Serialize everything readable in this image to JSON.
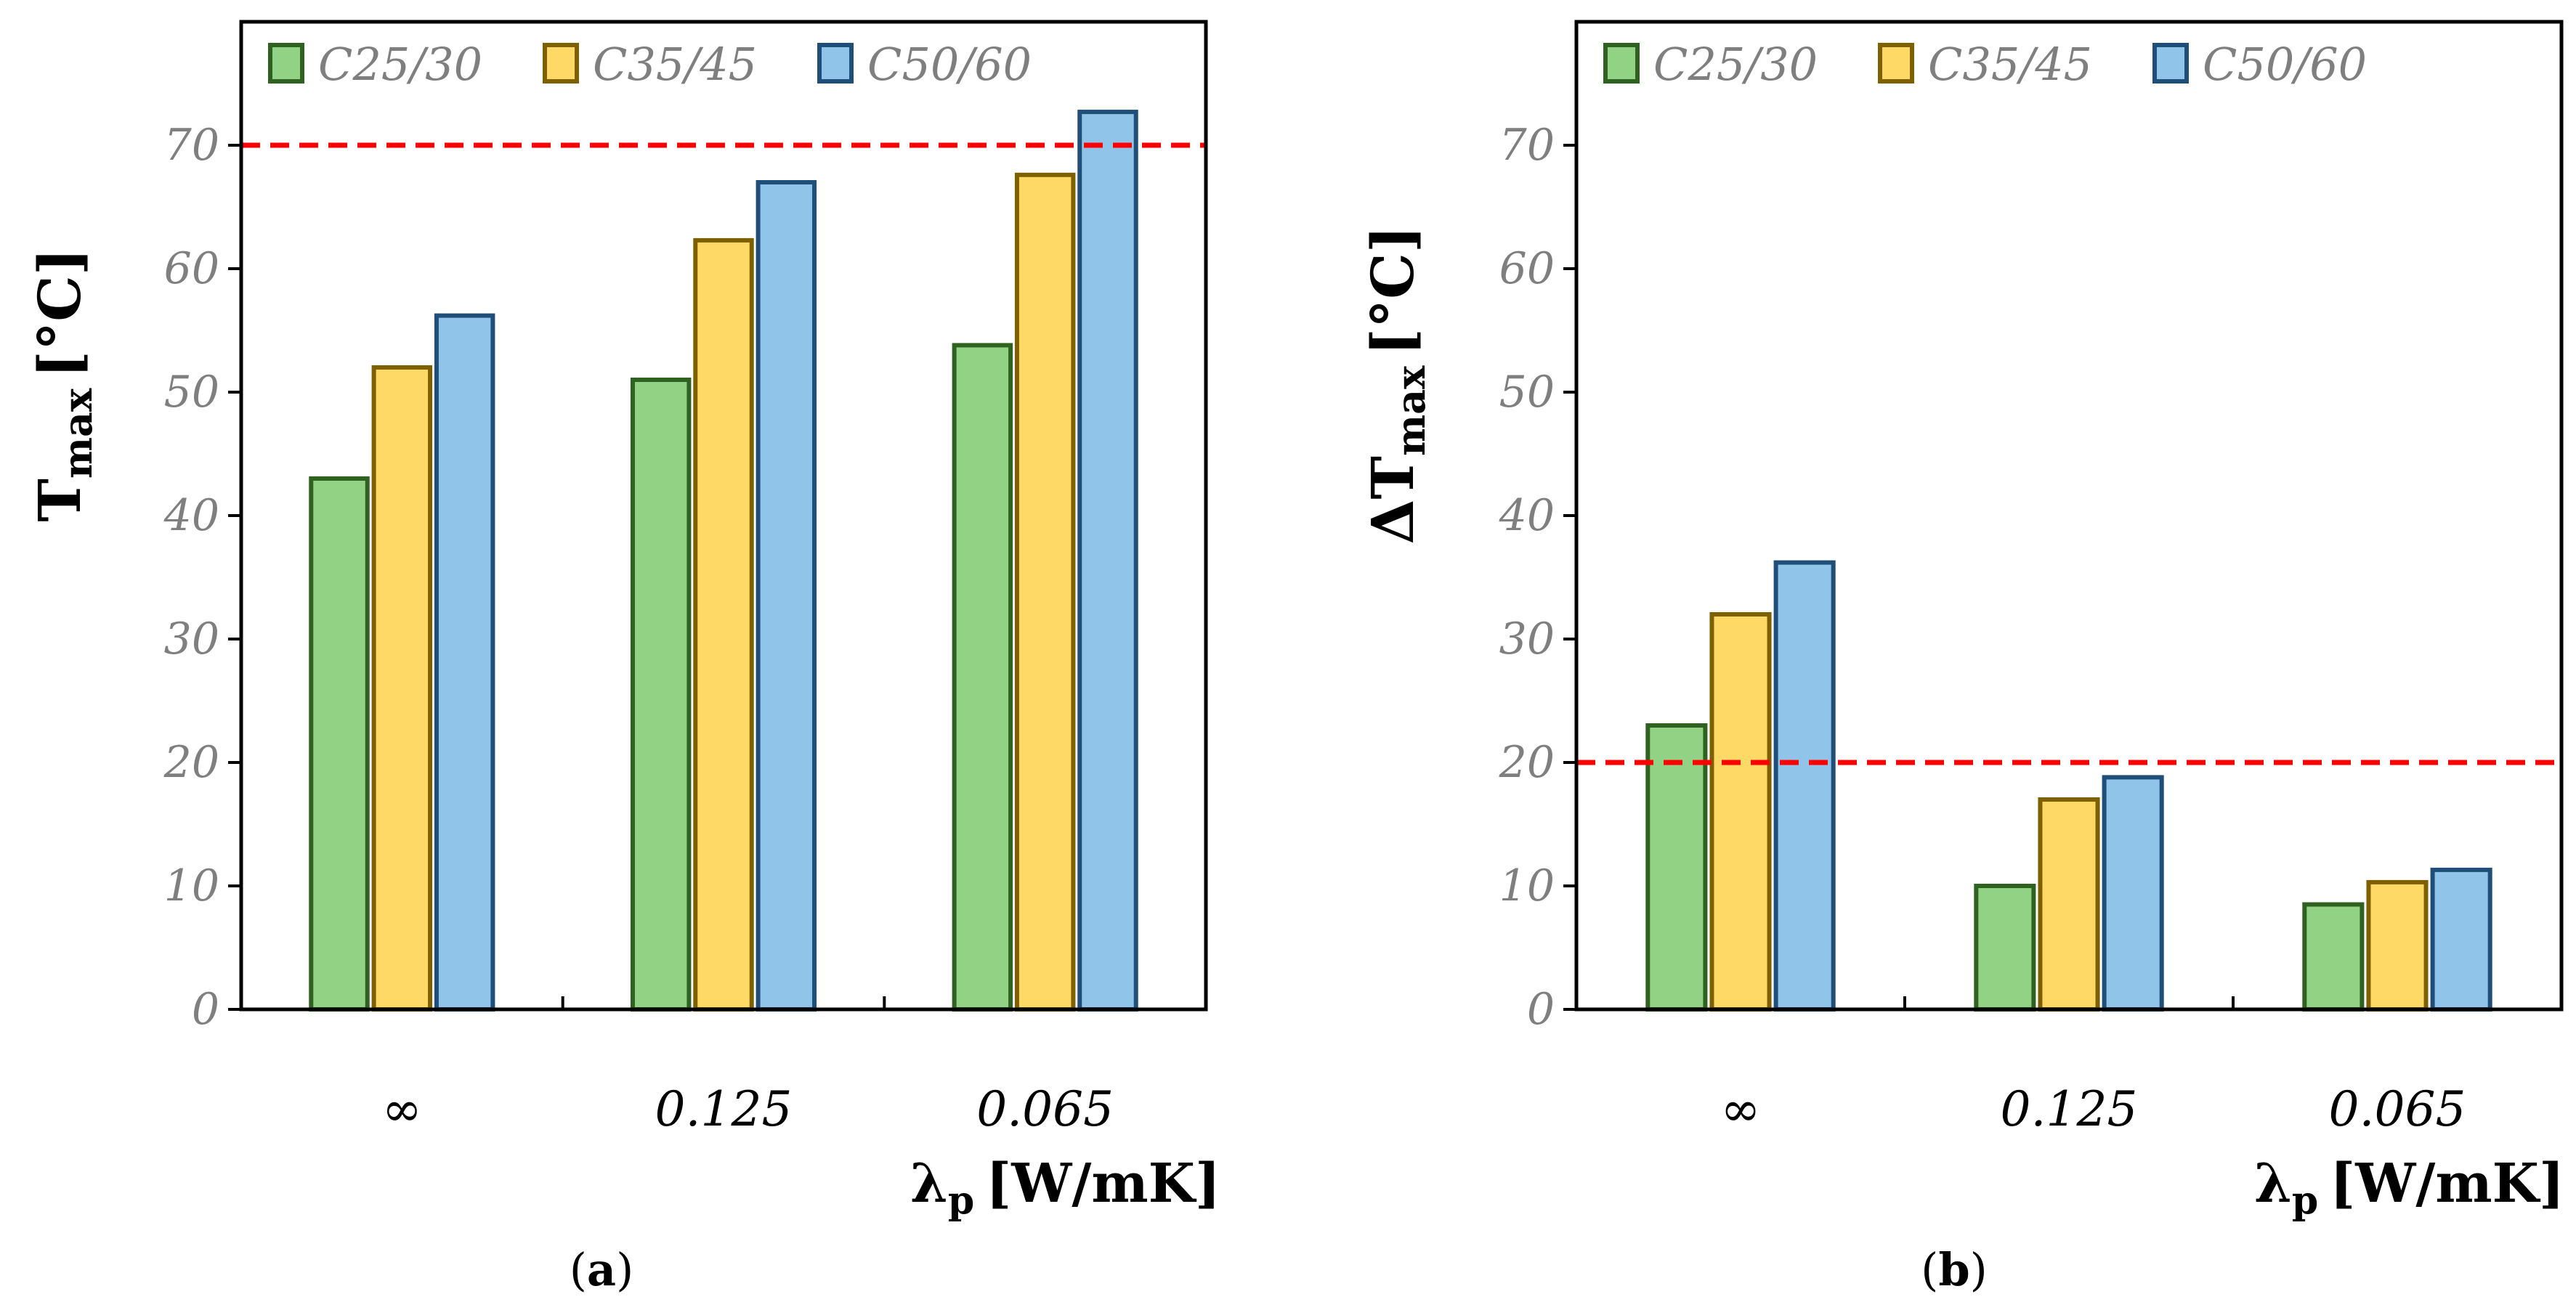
{
  "chart_data": [
    {
      "type": "bar",
      "panel": "a",
      "panel_label": "a",
      "ylabel_main": "T",
      "ylabel_sub": "max",
      "ylabel_unit": "[°C]",
      "xlabel_main": "λ",
      "xlabel_sub": "p",
      "xlabel_unit": "[W/mK]",
      "categories": [
        "∞",
        "0.125",
        "0.065"
      ],
      "series": [
        {
          "name": "C25/30",
          "values": [
            43,
            51,
            53.8
          ],
          "fill": "#92D285",
          "stroke": "#2F6120"
        },
        {
          "name": "C35/45",
          "values": [
            52,
            62.3,
            67.6
          ],
          "fill": "#FFD966",
          "stroke": "#7F6000"
        },
        {
          "name": "C50/60",
          "values": [
            56.2,
            67,
            72.7
          ],
          "fill": "#91C4E9",
          "stroke": "#1F4E79"
        }
      ],
      "ylim": [
        0,
        80
      ],
      "yticks": [
        "0",
        "10",
        "20",
        "30",
        "40",
        "50",
        "60",
        "70"
      ],
      "threshold": 70,
      "threshold_color": "#FF0000",
      "legend_position": "top-left"
    },
    {
      "type": "bar",
      "panel": "b",
      "panel_label": "b",
      "ylabel_main": "ΔT",
      "ylabel_sub": "max",
      "ylabel_unit": "[°C]",
      "xlabel_main": "λ",
      "xlabel_sub": "p",
      "xlabel_unit": "[W/mK]",
      "categories": [
        "∞",
        "0.125",
        "0.065"
      ],
      "series": [
        {
          "name": "C25/30",
          "values": [
            23,
            10,
            8.5
          ],
          "fill": "#92D285",
          "stroke": "#2F6120"
        },
        {
          "name": "C35/45",
          "values": [
            32,
            17,
            10.3
          ],
          "fill": "#FFD966",
          "stroke": "#7F6000"
        },
        {
          "name": "C50/60",
          "values": [
            36.2,
            18.8,
            11.3
          ],
          "fill": "#91C4E9",
          "stroke": "#1F4E79"
        }
      ],
      "ylim": [
        0,
        80
      ],
      "yticks": [
        "0",
        "10",
        "20",
        "30",
        "40",
        "50",
        "60",
        "70"
      ],
      "threshold": 20,
      "threshold_color": "#FF0000",
      "legend_position": "top-left"
    }
  ]
}
